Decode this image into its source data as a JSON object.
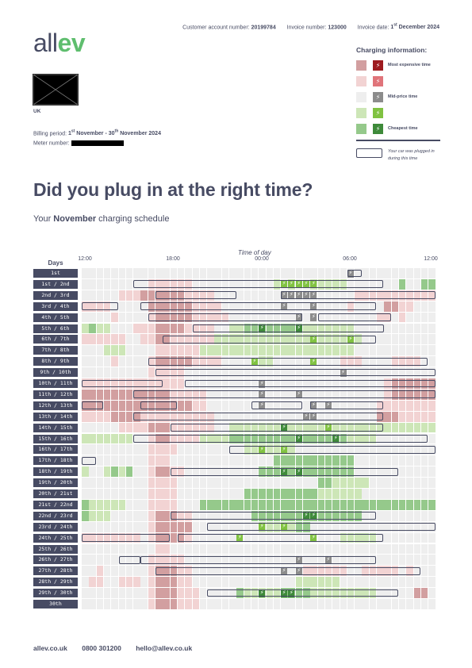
{
  "header": {
    "account_label": "Customer account number:",
    "account_value": "20199784",
    "invoice_label": "Invoice number:",
    "invoice_value": "123000",
    "date_label": "Invoice date:",
    "date_day": "1",
    "date_sup": "st",
    "date_rest": " December 2024"
  },
  "logo": {
    "part1": "all",
    "part2": "ev"
  },
  "address": {
    "country": "UK"
  },
  "billing": {
    "label": "Billing period:",
    "start_day": "1",
    "start_sup": "st",
    "start_rest": " November - 30",
    "end_sup": "th",
    "end_rest": " November 2024"
  },
  "meter": {
    "label": "Meter number:"
  },
  "legend": {
    "title": "Charging information:",
    "items": [
      {
        "label": "Most expensive time",
        "color": "#d29fa0",
        "icon_color": "#9e1b1f"
      },
      {
        "label": "",
        "color": "#f2d3d3",
        "icon_color": "#e0747a"
      },
      {
        "label": "Mid-price time",
        "color": "#eeeeee",
        "icon_color": "#8c8c8c"
      },
      {
        "label": "",
        "color": "#cde6b7",
        "icon_color": "#80c241"
      },
      {
        "label": "Cheapest time",
        "color": "#95c98b",
        "icon_color": "#3e8a3a"
      }
    ],
    "plug_label": "Your car was plugged in during this time"
  },
  "title": "Did you plug in at the right time?",
  "subtitle": {
    "pre": "Your ",
    "month": "November",
    "post": " charging schedule"
  },
  "chart_data": {
    "type": "heatmap",
    "xlabel": "Time of day",
    "ylabel": "Days",
    "x_ticks": [
      "12:00",
      "18:00",
      "00:00",
      "06:00",
      "12:00"
    ],
    "colors": {
      "0": "#eeeeee",
      "1": "#f2d3d3",
      "2": "#d29fa0",
      "3": "#cde6b7",
      "4": "#95c98b",
      "bolt_expensive": "#9e1b1f",
      "bolt_high": "#e0747a",
      "bolt_mid": "#8c8c8c",
      "bolt_low": "#80c241",
      "bolt_cheapest": "#3e8a3a"
    },
    "rows": [
      {
        "label": "1st",
        "cells": "000000000000000000000000000000000000000000000000",
        "plug": [
          [
            36,
            37
          ]
        ],
        "bolts": [
          [
            36,
            "m"
          ]
        ]
      },
      {
        "label": "1st / 2nd",
        "cells": "000000000111111000000000003030033333000000040044",
        "plug": [
          [
            7,
            40
          ]
        ],
        "bolts": [
          [
            27,
            "l"
          ],
          [
            28,
            "l"
          ],
          [
            29,
            "l"
          ],
          [
            30,
            "l"
          ],
          [
            31,
            "l"
          ]
        ]
      },
      {
        "label": "2nd / 3rd",
        "cells": "000001112222221111000000000000000000011111111111",
        "plug": [
          [
            10,
            20
          ],
          [
            27,
            47
          ]
        ],
        "bolts": [
          [
            27,
            "m"
          ],
          [
            28,
            "m"
          ],
          [
            29,
            "m"
          ],
          [
            30,
            "m"
          ],
          [
            31,
            "m"
          ]
        ]
      },
      {
        "label": "3rd / 4th",
        "cells": "111100000222222111100000000000000000100002211000",
        "plug": [
          [
            0,
            4
          ],
          [
            8,
            39
          ]
        ],
        "bolts": [
          [
            27,
            "m"
          ],
          [
            31,
            "m"
          ]
        ]
      },
      {
        "label": "4th / 5th",
        "cells": "000010000122222111110000000000000000000011010000",
        "plug": [
          [
            9,
            29
          ],
          [
            32,
            41
          ]
        ],
        "bolts": [
          [
            29,
            "m"
          ],
          [
            31,
            "m"
          ]
        ]
      },
      {
        "label": "5th / 6th",
        "cells": "343300011122221111003344444444333333300000000000",
        "plug": [
          [
            15,
            40
          ]
        ],
        "bolts": [
          [
            24,
            "c"
          ],
          [
            29,
            "c"
          ]
        ]
      },
      {
        "label": "6th / 7th",
        "cells": "111111001122111111333333333333333333330000000000",
        "plug": [
          [
            11,
            39
          ]
        ],
        "bolts": [
          [
            31,
            "l"
          ],
          [
            36,
            "l"
          ]
        ]
      },
      {
        "label": "7th / 8th",
        "cells": "000333000011111133333333333333333333300000000000",
        "plug": [],
        "bolts": []
      },
      {
        "label": "8th / 9th",
        "cells": "000010000122222111100000330000000001110000111100",
        "plug": [
          [
            9,
            46
          ]
        ],
        "bolts": [
          [
            23,
            "l"
          ],
          [
            31,
            "l"
          ]
        ]
      },
      {
        "label": "9th / 10th",
        "cells": "000000000111110000000000000000000000000000000000",
        "plug": [
          [
            10,
            47
          ]
        ],
        "bolts": [
          [
            35,
            "m"
          ]
        ]
      },
      {
        "label": "10th / 11th",
        "cells": "111111111111110000000000000000000000000001222222",
        "plug": [
          [
            0,
            10
          ],
          [
            14,
            47
          ]
        ],
        "bolts": [
          [
            24,
            "m"
          ]
        ]
      },
      {
        "label": "11th / 12th",
        "cells": "222222222222111110000000000000000000000001222222",
        "plug": [
          [
            7,
            47
          ]
        ],
        "bolts": [
          [
            24,
            "m"
          ],
          [
            29,
            "m"
          ]
        ]
      },
      {
        "label": "12th / 13th",
        "cells": "222222222222222110000000000000000000000011111111",
        "plug": [
          [
            0,
            2
          ],
          [
            8,
            12
          ],
          [
            23,
            29
          ],
          [
            31,
            40
          ]
        ],
        "bolts": [
          [
            24,
            "m"
          ],
          [
            31,
            "m"
          ],
          [
            33,
            "m"
          ]
        ]
      },
      {
        "label": "13th / 14th",
        "cells": "111122221111111111000000000000000000000022211111",
        "plug": [
          [
            7,
            40
          ]
        ],
        "bolts": [
          [
            30,
            "m"
          ],
          [
            31,
            "m"
          ]
        ]
      },
      {
        "label": "14th / 15th",
        "cells": "000001111222111111003333333333333333333333333333",
        "plug": [
          [
            12,
            40
          ]
        ],
        "bolts": [
          [
            27,
            "c"
          ],
          [
            33,
            "l"
          ]
        ]
      },
      {
        "label": "15th / 16th",
        "cells": "333333300122111133334444444444444444333300000000",
        "plug": [
          [
            7,
            46
          ]
        ],
        "bolts": [
          [
            29,
            "c"
          ],
          [
            34,
            "c"
          ]
        ]
      },
      {
        "label": "16th / 17th",
        "cells": "000000000111100000000033333330000000000000000000",
        "plug": [
          [
            20,
            47
          ]
        ],
        "bolts": [
          [
            24,
            "l"
          ],
          [
            27,
            "l"
          ]
        ]
      },
      {
        "label": "17th / 18th",
        "cells": "000000000111000000000000004444444444400000000000",
        "plug": [
          [
            0,
            1
          ]
        ],
        "bolts": []
      },
      {
        "label": "18th / 19th",
        "cells": "300343400122110000000000444444444444400000000000",
        "plug": [
          [
            12,
            42
          ]
        ],
        "bolts": [
          [
            27,
            "c"
          ],
          [
            29,
            "c"
          ]
        ]
      },
      {
        "label": "19th / 20th",
        "cells": "000000000111100000000000000000004433333000000000",
        "plug": [],
        "bolts": []
      },
      {
        "label": "20th / 21st",
        "cells": "000000000111100000000044444444443333330000000000",
        "plug": [],
        "bolts": []
      },
      {
        "label": "21st / 22nd",
        "cells": "433333000111100044444444444444444444444444444444",
        "plug": [],
        "bolts": []
      },
      {
        "label": "22nd / 23rd",
        "cells": "433300000122211000000004444444444444440000000000",
        "plug": [
          [
            12,
            39
          ]
        ],
        "bolts": [
          [
            30,
            "c"
          ],
          [
            31,
            "c"
          ]
        ]
      },
      {
        "label": "23rd / 24th",
        "cells": "000000000122222000000000333334400000000000000000",
        "plug": [
          [
            17,
            47
          ]
        ],
        "bolts": [
          [
            24,
            "l"
          ],
          [
            27,
            "l"
          ]
        ]
      },
      {
        "label": "24th / 25th",
        "cells": "111111110122221000000000000000000003333300000000",
        "plug": [
          [
            0,
            11
          ],
          [
            13,
            40
          ]
        ],
        "bolts": [
          [
            21,
            "l"
          ],
          [
            31,
            "l"
          ]
        ]
      },
      {
        "label": "25th / 26th",
        "cells": "000000000011000000000000000000000000000000000000",
        "plug": [],
        "bolts": []
      },
      {
        "label": "26th / 27th",
        "cells": "000000000111110000000000000000000000000000000000",
        "plug": [
          [
            5,
            7
          ],
          [
            8,
            39
          ]
        ],
        "bolts": [
          [
            29,
            "m"
          ],
          [
            33,
            "m"
          ]
        ]
      },
      {
        "label": "27th / 28th",
        "cells": "001000000122211000000000000000111111001111101000",
        "plug": [
          [
            10,
            45
          ]
        ],
        "bolts": [
          [
            27,
            "m"
          ],
          [
            29,
            "m"
          ]
        ]
      },
      {
        "label": "28th / 29th",
        "cells": "011001110122211000000000000003333330000000000000",
        "plug": [],
        "bolts": []
      },
      {
        "label": "29th / 30th",
        "cells": "000000000122211100000433333444433333333300000220",
        "plug": [
          [
            17,
            42
          ]
        ],
        "bolts": [
          [
            24,
            "c"
          ],
          [
            27,
            "c"
          ],
          [
            28,
            "c"
          ]
        ]
      },
      {
        "label": "30th",
        "cells": "000000000122211100000000000000000000000000000000",
        "plug": [],
        "bolts": []
      }
    ]
  },
  "footer": {
    "website": "allev.co.uk",
    "phone": "0800 301200",
    "email": "hello@allev.co.uk"
  }
}
